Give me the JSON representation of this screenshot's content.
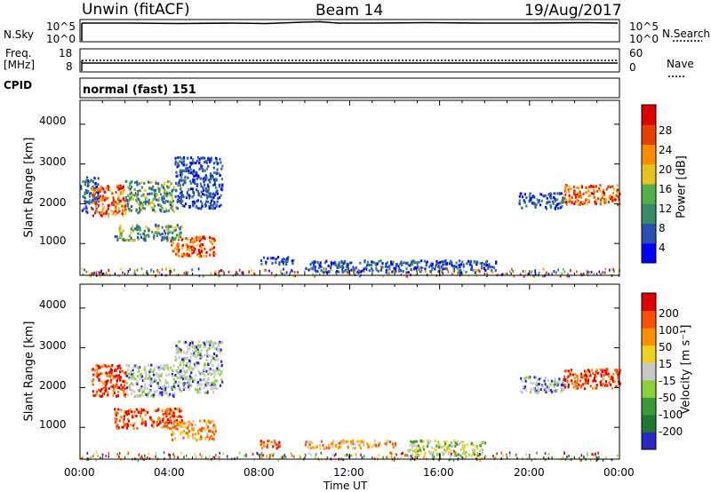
{
  "header": {
    "station": "Unwin (fitACF)",
    "beam": "Beam 14",
    "date": "19/Aug/2017"
  },
  "strips": {
    "nsky_label": "N.Sky",
    "nsky_ticks": [
      "10^5",
      "10^0"
    ],
    "nsearch_label": "N.Search",
    "nsearch_ticks": [
      "10^5",
      "10^0"
    ],
    "freq_label": "Freq.",
    "freq_unit": "[MHz]",
    "freq_ticks": [
      "18",
      "8"
    ],
    "nave_label": "Nave",
    "nave_ticks": [
      "60",
      "0"
    ],
    "cpid_label": "CPID",
    "cpid_value": "normal (fast) 151"
  },
  "chart_data": [
    {
      "type": "heatmap",
      "name": "power",
      "ylabel": "Slant Range [km]",
      "ylim": [
        200,
        4600
      ],
      "yticks": [
        "4000",
        "3000",
        "2000",
        "1000"
      ],
      "colorbar_label": "Power [dB]",
      "colorbar_ticks": [
        "28",
        "24",
        "20",
        "16",
        "12",
        "8",
        "4"
      ],
      "colorbar_colors": [
        "#0000ff",
        "#2850b4",
        "#3a8a68",
        "#52b04a",
        "#e8c020",
        "#ff8c00",
        "#e84000",
        "#e00000"
      ],
      "echo_regions": [
        {
          "t": [
            0.0,
            0.8
          ],
          "range": [
            1800,
            2700
          ],
          "level": "low"
        },
        {
          "t": [
            0.5,
            2.0
          ],
          "range": [
            1700,
            2500
          ],
          "level": "high"
        },
        {
          "t": [
            2.0,
            4.2
          ],
          "range": [
            1800,
            2600
          ],
          "level": "mid"
        },
        {
          "t": [
            4.2,
            6.3
          ],
          "range": [
            1900,
            3200
          ],
          "level": "low"
        },
        {
          "t": [
            1.5,
            4.5
          ],
          "range": [
            1100,
            1500
          ],
          "level": "mid"
        },
        {
          "t": [
            4.0,
            6.0
          ],
          "range": [
            700,
            1200
          ],
          "level": "high"
        },
        {
          "t": [
            8.0,
            9.5
          ],
          "range": [
            500,
            700
          ],
          "level": "low"
        },
        {
          "t": [
            10.0,
            18.5
          ],
          "range": [
            300,
            600
          ],
          "level": "low"
        },
        {
          "t": [
            19.5,
            21.5
          ],
          "range": [
            1900,
            2300
          ],
          "level": "low"
        },
        {
          "t": [
            21.5,
            24.0
          ],
          "range": [
            2000,
            2500
          ],
          "level": "high"
        }
      ]
    },
    {
      "type": "heatmap",
      "name": "velocity",
      "ylabel": "Slant Range [km]",
      "xlabel": "Time UT",
      "xticks": [
        "00:00",
        "04:00",
        "08:00",
        "12:00",
        "16:00",
        "20:00",
        "00:00"
      ],
      "ylim": [
        200,
        4600
      ],
      "yticks": [
        "4000",
        "3000",
        "2000",
        "1000"
      ],
      "colorbar_label": "Velocity [m s⁻¹]",
      "colorbar_ticks": [
        "200",
        "100",
        "50",
        "15",
        "-15",
        "-50",
        "-100",
        "-200"
      ],
      "colorbar_colors": [
        "#2828c8",
        "#1e7830",
        "#3a9a3a",
        "#8cd040",
        "#c8c8c8",
        "#f0d020",
        "#ff9000",
        "#ff5000",
        "#e00000"
      ],
      "echo_regions": [
        {
          "t": [
            0.5,
            2.0
          ],
          "range": [
            1800,
            2600
          ],
          "level": "neg-high"
        },
        {
          "t": [
            2.0,
            4.2
          ],
          "range": [
            1800,
            2600
          ],
          "level": "zero"
        },
        {
          "t": [
            4.2,
            6.3
          ],
          "range": [
            1900,
            3200
          ],
          "level": "zero"
        },
        {
          "t": [
            1.5,
            4.5
          ],
          "range": [
            1000,
            1500
          ],
          "level": "neg-high"
        },
        {
          "t": [
            4.0,
            6.0
          ],
          "range": [
            700,
            1200
          ],
          "level": "neg-mid"
        },
        {
          "t": [
            8.0,
            9.0
          ],
          "range": [
            500,
            700
          ],
          "level": "neg-high"
        },
        {
          "t": [
            10.0,
            14.0
          ],
          "range": [
            500,
            700
          ],
          "level": "neg-mid"
        },
        {
          "t": [
            14.5,
            18.0
          ],
          "range": [
            300,
            700
          ],
          "level": "pos-low"
        },
        {
          "t": [
            19.5,
            21.5
          ],
          "range": [
            1900,
            2300
          ],
          "level": "zero"
        },
        {
          "t": [
            21.5,
            24.0
          ],
          "range": [
            2000,
            2500
          ],
          "level": "neg-high"
        }
      ]
    }
  ]
}
